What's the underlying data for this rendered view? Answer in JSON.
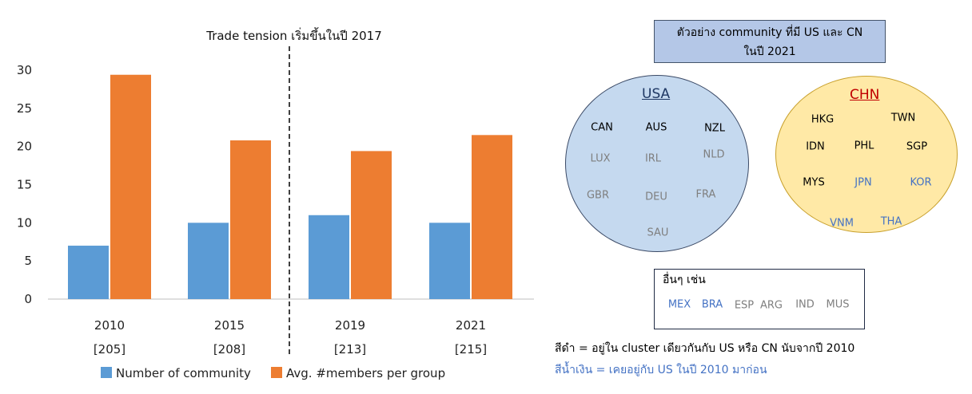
{
  "chart_data": {
    "type": "bar",
    "title": "Trade tension เริ่มขึ้นในปี 2017",
    "categories": [
      "2010",
      "2015",
      "2019",
      "2021"
    ],
    "category_notes": [
      "[205]",
      "[208]",
      "[213]",
      "[215]"
    ],
    "series": [
      {
        "name": "Number of community",
        "color": "#5b9bd5",
        "values": [
          7,
          10,
          11,
          10
        ]
      },
      {
        "name": "Avg. #members per group",
        "color": "#ed7d31",
        "values": [
          29.4,
          20.8,
          19.4,
          21.5
        ]
      }
    ],
    "ylim": [
      0,
      30
    ],
    "yticks": [
      "0",
      "5",
      "10",
      "15",
      "20",
      "25",
      "30"
    ],
    "grid": false,
    "legend": "bottom",
    "annotation": "dashed vertical divider between 2015 and 2019"
  },
  "diagram": {
    "title_line1": "ตัวอย่าง community ที่มี US และ CN",
    "title_line2": "ในปี 2021",
    "usa": {
      "label": "USA",
      "label_color": "#1f3864",
      "codes": [
        {
          "text": "CAN",
          "color": "black"
        },
        {
          "text": "AUS",
          "color": "black"
        },
        {
          "text": "NZL",
          "color": "black"
        },
        {
          "text": "LUX",
          "color": "gray"
        },
        {
          "text": "IRL",
          "color": "gray"
        },
        {
          "text": "NLD",
          "color": "gray"
        },
        {
          "text": "GBR",
          "color": "gray"
        },
        {
          "text": "DEU",
          "color": "gray"
        },
        {
          "text": "FRA",
          "color": "gray"
        },
        {
          "text": "SAU",
          "color": "gray"
        }
      ]
    },
    "chn": {
      "label": "CHN",
      "label_color": "#c00000",
      "codes": [
        {
          "text": "HKG",
          "color": "black"
        },
        {
          "text": "TWN",
          "color": "black"
        },
        {
          "text": "IDN",
          "color": "black"
        },
        {
          "text": "PHL",
          "color": "black"
        },
        {
          "text": "SGP",
          "color": "black"
        },
        {
          "text": "MYS",
          "color": "black"
        },
        {
          "text": "JPN",
          "color": "blue"
        },
        {
          "text": "KOR",
          "color": "blue"
        },
        {
          "text": "VNM",
          "color": "blue"
        },
        {
          "text": "THA",
          "color": "blue"
        }
      ]
    },
    "others": {
      "title": "อื่นๆ เช่น",
      "codes": [
        {
          "text": "MEX",
          "color": "blue"
        },
        {
          "text": "BRA",
          "color": "blue"
        },
        {
          "text": "ESP",
          "color": "gray"
        },
        {
          "text": "ARG",
          "color": "gray"
        },
        {
          "text": "IND",
          "color": "gray"
        },
        {
          "text": "MUS",
          "color": "gray"
        }
      ]
    },
    "note_black": "สีดำ = อยู่ใน cluster เดียวกันกับ US หรือ CN นับจากปี 2010",
    "note_blue": "สีน้ำเงิน = เคยอยู่กับ US ในปี 2010 มาก่อน",
    "colors": {
      "black": "#000000",
      "gray": "#7f7f7f",
      "blue": "#4472c4"
    }
  }
}
